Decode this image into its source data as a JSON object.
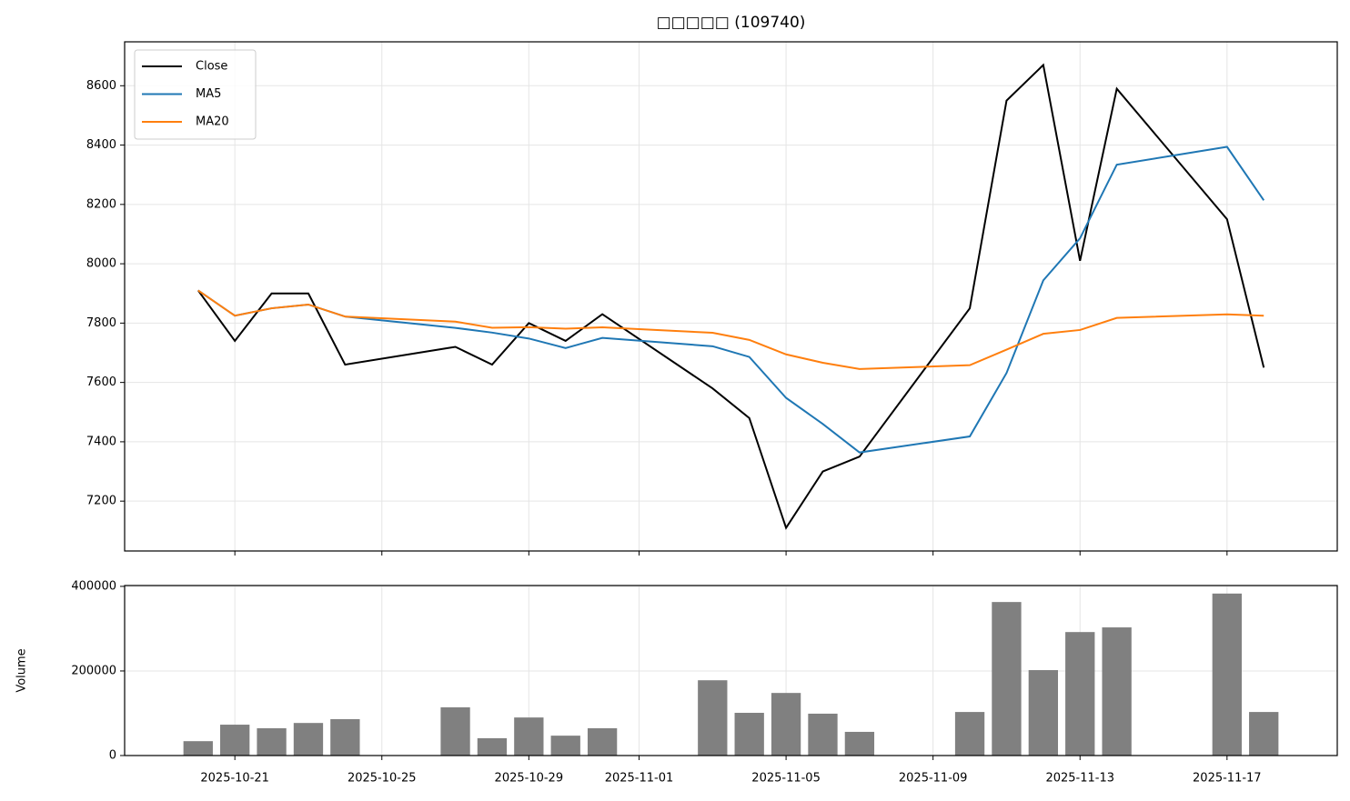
{
  "chart_data": [
    {
      "type": "line",
      "title": "□□□□□ (109740)",
      "x": [
        "2025-10-20",
        "2025-10-21",
        "2025-10-22",
        "2025-10-23",
        "2025-10-24",
        "2025-10-27",
        "2025-10-28",
        "2025-10-29",
        "2025-10-30",
        "2025-10-31",
        "2025-11-03",
        "2025-11-04",
        "2025-11-05",
        "2025-11-06",
        "2025-11-07",
        "2025-11-10",
        "2025-11-11",
        "2025-11-12",
        "2025-11-13",
        "2025-11-14",
        "2025-11-17",
        "2025-11-18"
      ],
      "series": [
        {
          "name": "Close",
          "color": "#000000",
          "values": [
            7910,
            7740,
            7900,
            7900,
            7660,
            7720,
            7660,
            7800,
            7740,
            7830,
            7580,
            7480,
            7110,
            7300,
            7350,
            7850,
            8550,
            8670,
            8010,
            8590,
            8150,
            7650
          ]
        },
        {
          "name": "MA5",
          "color": "#1f77b4",
          "values": [
            7910,
            7825,
            7850,
            7862.5,
            7822,
            7784,
            7768,
            7748,
            7716,
            7750,
            7722,
            7686,
            7548,
            7460,
            7364,
            7418,
            7632,
            7944,
            8086,
            8334,
            8394,
            8214
          ]
        },
        {
          "name": "MA20",
          "color": "#ff7f0e",
          "values": [
            7910,
            7825,
            7850,
            7862.5,
            7822,
            7805,
            7784.3,
            7786.3,
            7781.1,
            7786,
            7767.3,
            7743.3,
            7694.6,
            7666.4,
            7645.3,
            7658.1,
            7710.6,
            7763.9,
            7776.8,
            7817.5,
            7829.5,
            7825
          ]
        }
      ],
      "xlim": [
        "2025-10-18",
        "2025-11-20"
      ],
      "xticks": [
        "2025-10-21",
        "2025-10-25",
        "2025-10-29",
        "2025-11-01",
        "2025-11-05",
        "2025-11-09",
        "2025-11-13",
        "2025-11-17"
      ],
      "ylim": [
        7032,
        8748
      ],
      "yticks": [
        7200,
        7400,
        7600,
        7800,
        8000,
        8200,
        8400,
        8600
      ],
      "grid": true,
      "legend": "upper left"
    },
    {
      "type": "bar",
      "ylabel": "Volume",
      "color": "#808080",
      "x": [
        "2025-10-20",
        "2025-10-21",
        "2025-10-22",
        "2025-10-23",
        "2025-10-24",
        "2025-10-27",
        "2025-10-28",
        "2025-10-29",
        "2025-10-30",
        "2025-10-31",
        "2025-11-03",
        "2025-11-04",
        "2025-11-05",
        "2025-11-06",
        "2025-11-07",
        "2025-11-10",
        "2025-11-11",
        "2025-11-12",
        "2025-11-13",
        "2025-11-14",
        "2025-11-17",
        "2025-11-18"
      ],
      "values": [
        34000,
        73000,
        64500,
        77000,
        86000,
        114000,
        41000,
        90000,
        47000,
        64500,
        178000,
        101000,
        148000,
        99000,
        56000,
        103000,
        363000,
        202000,
        292000,
        303000,
        383000,
        103000
      ],
      "xlim": [
        "2025-10-18",
        "2025-11-20"
      ],
      "xticks": [
        "2025-10-21",
        "2025-10-25",
        "2025-10-29",
        "2025-11-01",
        "2025-11-05",
        "2025-11-09",
        "2025-11-13",
        "2025-11-17"
      ],
      "ylim": [
        0,
        402000
      ],
      "yticks": [
        0,
        200000,
        400000
      ],
      "grid": true
    }
  ]
}
